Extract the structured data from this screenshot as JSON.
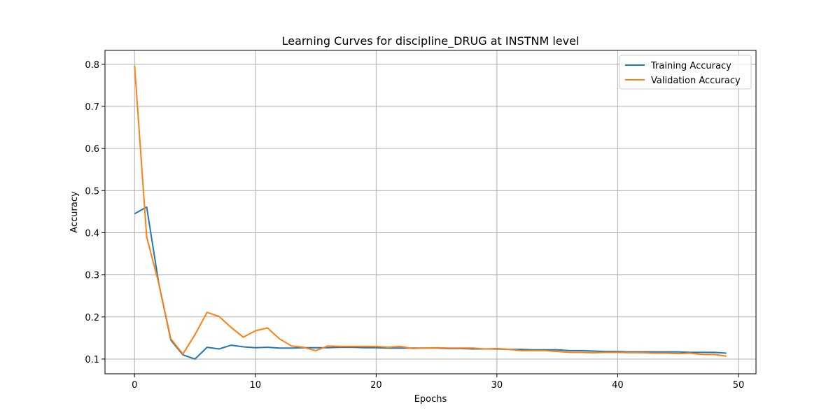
{
  "chart_data": {
    "type": "line",
    "title": "Learning Curves for discipline_DRUG at INSTNM level",
    "xlabel": "Epochs",
    "ylabel": "Accuracy",
    "xlim": [
      -2.45,
      51.45
    ],
    "ylim": [
      0.065,
      0.833
    ],
    "xticks": [
      0,
      10,
      20,
      30,
      40,
      50
    ],
    "xtick_labels": [
      "0",
      "10",
      "20",
      "30",
      "40",
      "50"
    ],
    "yticks": [
      0.1,
      0.2,
      0.3,
      0.4,
      0.5,
      0.6,
      0.7,
      0.8
    ],
    "ytick_labels": [
      "0.1",
      "0.2",
      "0.3",
      "0.4",
      "0.5",
      "0.6",
      "0.7",
      "0.8"
    ],
    "grid": true,
    "legend_position": "top-right",
    "x": [
      0,
      1,
      2,
      3,
      4,
      5,
      6,
      7,
      8,
      9,
      10,
      11,
      12,
      13,
      14,
      15,
      16,
      17,
      18,
      19,
      20,
      21,
      22,
      23,
      24,
      25,
      26,
      27,
      28,
      29,
      30,
      31,
      32,
      33,
      34,
      35,
      36,
      37,
      38,
      39,
      40,
      41,
      42,
      43,
      44,
      45,
      46,
      47,
      48,
      49
    ],
    "series": [
      {
        "name": "Training Accuracy",
        "color": "#1f77b4",
        "values": [
          0.445,
          0.461,
          0.28,
          0.145,
          0.11,
          0.1,
          0.128,
          0.124,
          0.133,
          0.129,
          0.127,
          0.128,
          0.126,
          0.126,
          0.127,
          0.127,
          0.127,
          0.128,
          0.128,
          0.127,
          0.127,
          0.126,
          0.126,
          0.126,
          0.126,
          0.126,
          0.125,
          0.125,
          0.124,
          0.124,
          0.124,
          0.123,
          0.123,
          0.122,
          0.122,
          0.122,
          0.12,
          0.12,
          0.119,
          0.118,
          0.118,
          0.117,
          0.117,
          0.117,
          0.117,
          0.117,
          0.116,
          0.116,
          0.116,
          0.114
        ]
      },
      {
        "name": "Validation Accuracy",
        "color": "#ff7f0e",
        "values": [
          0.797,
          0.39,
          0.28,
          0.148,
          0.112,
          0.158,
          0.211,
          0.201,
          0.175,
          0.152,
          0.167,
          0.174,
          0.148,
          0.131,
          0.128,
          0.12,
          0.131,
          0.13,
          0.13,
          0.13,
          0.13,
          0.128,
          0.13,
          0.125,
          0.126,
          0.127,
          0.126,
          0.126,
          0.126,
          0.124,
          0.125,
          0.123,
          0.12,
          0.12,
          0.12,
          0.118,
          0.116,
          0.116,
          0.115,
          0.116,
          0.116,
          0.115,
          0.115,
          0.114,
          0.114,
          0.113,
          0.114,
          0.111,
          0.111,
          0.107
        ]
      }
    ]
  }
}
